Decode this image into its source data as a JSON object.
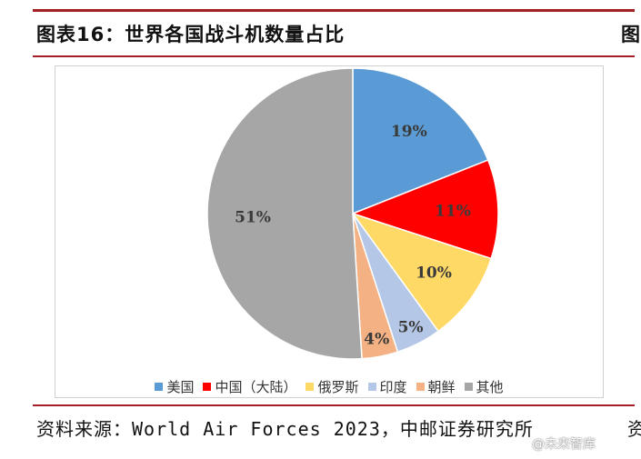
{
  "header": {
    "title": "图表16：世界各国战斗机数量占比",
    "title_right": "图"
  },
  "chart_data": {
    "type": "pie",
    "title": "",
    "slices": [
      {
        "category": "美国",
        "value": 19,
        "label": "19%",
        "color": "#5b9bd5"
      },
      {
        "category": "中国（大陆）",
        "value": 11,
        "label": "11%",
        "color": "#ff0000"
      },
      {
        "category": "俄罗斯",
        "value": 10,
        "label": "10%",
        "color": "#ffd966"
      },
      {
        "category": "印度",
        "value": 5,
        "label": "5%",
        "color": "#b4c7e7"
      },
      {
        "category": "朝鲜",
        "value": 4,
        "label": "4%",
        "color": "#f4b183"
      },
      {
        "category": "其他",
        "value": 51,
        "label": "51%",
        "color": "#a6a6a6"
      }
    ],
    "legend_position": "bottom"
  },
  "footer": {
    "source": "资料来源：World Air Forces 2023，中邮证券研究所",
    "source_right": "资"
  },
  "watermark": {
    "text": "@未来智库"
  }
}
